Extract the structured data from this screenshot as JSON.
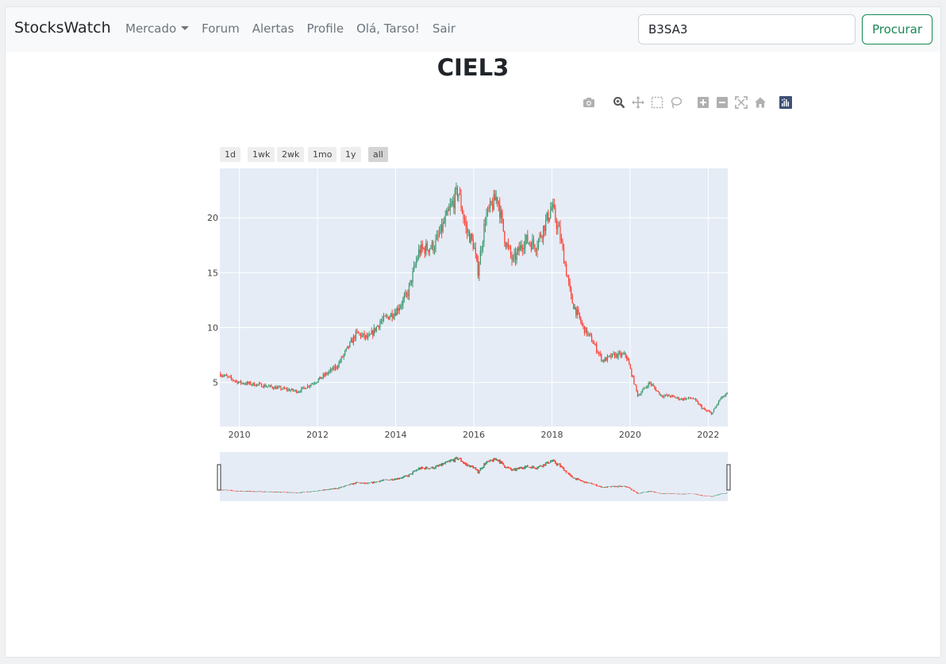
{
  "navbar": {
    "brand": "StocksWatch",
    "links": [
      "Mercado",
      "Forum",
      "Alertas",
      "Profile",
      "Olá, Tarso!",
      "Sair"
    ]
  },
  "search": {
    "value": "B3SA3",
    "button": "Procurar"
  },
  "page": {
    "title": "CIEL3"
  },
  "modebar": [
    "camera-icon",
    "zoom-icon",
    "pan-icon",
    "box-select-icon",
    "lasso-icon",
    "zoom-in-icon",
    "zoom-out-icon",
    "autoscale-icon",
    "reset-axes-icon",
    "plotly-logo-icon"
  ],
  "range_selector": {
    "buttons": [
      "1d",
      "1wk",
      "2wk",
      "1mo",
      "1y",
      "all"
    ],
    "active": "all"
  },
  "colors": {
    "increasing": "#3d9970",
    "decreasing": "#ff4136",
    "plot_bg": "#e5ecf6",
    "accent": "#198754"
  },
  "chart_data": {
    "type": "candlestick",
    "title": "",
    "xlabel": "",
    "ylabel": "",
    "x_ticks": [
      "2010",
      "2012",
      "2014",
      "2016",
      "2018",
      "2020",
      "2022"
    ],
    "y_ticks": [
      5,
      10,
      15,
      20
    ],
    "xlim": [
      2009.5,
      2022.5
    ],
    "ylim": [
      1,
      24.5
    ],
    "grid": true,
    "rangeslider": true,
    "x": [
      2009.5,
      2010.0,
      2010.5,
      2011.0,
      2011.5,
      2012.0,
      2012.5,
      2013.0,
      2013.3,
      2013.6,
      2014.0,
      2014.3,
      2014.6,
      2015.0,
      2015.3,
      2015.6,
      2015.8,
      2016.0,
      2016.1,
      2016.3,
      2016.6,
      2016.8,
      2017.0,
      2017.3,
      2017.6,
      2018.0,
      2018.2,
      2018.5,
      2018.8,
      2019.0,
      2019.3,
      2019.6,
      2019.9,
      2020.2,
      2020.5,
      2020.8,
      2021.0,
      2021.3,
      2021.6,
      2021.9,
      2022.1,
      2022.3,
      2022.5
    ],
    "values": [
      5.8,
      5.0,
      4.8,
      4.5,
      4.2,
      5.2,
      6.5,
      9.5,
      9.0,
      10.5,
      11.5,
      13.0,
      17.0,
      17.5,
      20.0,
      22.5,
      19.0,
      17.5,
      15.0,
      20.0,
      22.0,
      18.0,
      16.0,
      18.0,
      17.5,
      21.0,
      18.5,
      12.5,
      10.0,
      9.0,
      7.0,
      7.5,
      7.5,
      3.8,
      5.0,
      3.8,
      3.8,
      3.5,
      3.6,
      2.5,
      2.2,
      3.5,
      4.0
    ]
  }
}
